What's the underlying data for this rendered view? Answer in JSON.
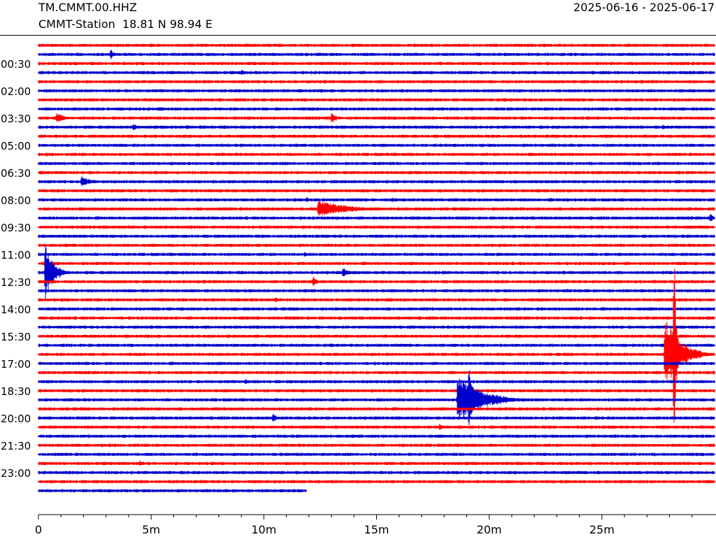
{
  "header": {
    "station_id": "TM.CMMT.00.HHZ",
    "station_desc": "CMMT-Station  18.81 N 98.94 E",
    "date_range": "2025-06-16 - 2025-06-17"
  },
  "chart_data": {
    "type": "line",
    "description": "Helicorder 24h seismogram, one trace per 30-minute row",
    "row_count": 50,
    "last_row_end_minute": 11.9,
    "colors": [
      "#ff0000",
      "#0000cc"
    ],
    "x_axis": {
      "range": [
        0,
        30
      ],
      "major_ticks": [
        0,
        5,
        10,
        15,
        20,
        25
      ],
      "tick_labels": [
        "0",
        "5m",
        "10m",
        "15m",
        "20m",
        "25m"
      ],
      "minor_tick_step": 1
    },
    "y_labels": [
      {
        "row": 3,
        "text": "00:30"
      },
      {
        "row": 6,
        "text": "02:00"
      },
      {
        "row": 9,
        "text": "03:30"
      },
      {
        "row": 12,
        "text": "05:00"
      },
      {
        "row": 15,
        "text": "06:30"
      },
      {
        "row": 18,
        "text": "08:00"
      },
      {
        "row": 21,
        "text": "09:30"
      },
      {
        "row": 24,
        "text": "11:00"
      },
      {
        "row": 27,
        "text": "12:30"
      },
      {
        "row": 30,
        "text": "14:00"
      },
      {
        "row": 33,
        "text": "15:30"
      },
      {
        "row": 36,
        "text": "17:00"
      },
      {
        "row": 39,
        "text": "18:30"
      },
      {
        "row": 42,
        "text": "20:00"
      },
      {
        "row": 45,
        "text": "21:30"
      },
      {
        "row": 48,
        "text": "23:00"
      }
    ],
    "events": [
      {
        "row": 1,
        "minute": 3.2,
        "amp": 8,
        "dur": 0.6
      },
      {
        "row": 3,
        "minute": 9.0,
        "amp": 5,
        "dur": 0.6
      },
      {
        "row": 8,
        "minute": 0.8,
        "amp": 8,
        "dur": 1.2
      },
      {
        "row": 8,
        "minute": 13.0,
        "amp": 8,
        "dur": 1.0
      },
      {
        "row": 9,
        "minute": 4.2,
        "amp": 6,
        "dur": 0.8
      },
      {
        "row": 9,
        "minute": 6.6,
        "amp": 4,
        "dur": 0.5
      },
      {
        "row": 9,
        "minute": 27.7,
        "amp": 4,
        "dur": 0.6
      },
      {
        "row": 11,
        "minute": 17.5,
        "amp": 3,
        "dur": 0.5
      },
      {
        "row": 14,
        "minute": 19.7,
        "amp": 3,
        "dur": 0.4
      },
      {
        "row": 14,
        "minute": 28.0,
        "amp": 3,
        "dur": 0.4
      },
      {
        "row": 15,
        "minute": 1.9,
        "amp": 9,
        "dur": 1.4
      },
      {
        "row": 17,
        "minute": 11.9,
        "amp": 5,
        "dur": 0.6
      },
      {
        "row": 17,
        "minute": 15.7,
        "amp": 4,
        "dur": 0.6
      },
      {
        "row": 17,
        "minute": 22.7,
        "amp": 4,
        "dur": 0.5
      },
      {
        "row": 18,
        "minute": 12.4,
        "amp": 14,
        "dur": 4.0
      },
      {
        "row": 19,
        "minute": 29.8,
        "amp": 8,
        "dur": 0.4
      },
      {
        "row": 23,
        "minute": 11.8,
        "amp": 4,
        "dur": 0.4
      },
      {
        "row": 25,
        "minute": 0.3,
        "amp": 40,
        "dur": 1.2
      },
      {
        "row": 25,
        "minute": 13.5,
        "amp": 8,
        "dur": 0.9
      },
      {
        "row": 26,
        "minute": 12.2,
        "amp": 10,
        "dur": 0.4
      },
      {
        "row": 28,
        "minute": 10.5,
        "amp": 5,
        "dur": 0.4
      },
      {
        "row": 34,
        "minute": 27.8,
        "amp": 55,
        "dur": 2.2
      },
      {
        "row": 34,
        "minute": 28.2,
        "amp": 175,
        "dur": 0.3
      },
      {
        "row": 37,
        "minute": 9.2,
        "amp": 5,
        "dur": 0.4
      },
      {
        "row": 39,
        "minute": 18.6,
        "amp": 35,
        "dur": 3.5
      },
      {
        "row": 39,
        "minute": 19.1,
        "amp": 75,
        "dur": 0.5
      },
      {
        "row": 41,
        "minute": 10.4,
        "amp": 8,
        "dur": 0.6
      },
      {
        "row": 42,
        "minute": 17.8,
        "amp": 6,
        "dur": 0.5
      },
      {
        "row": 46,
        "minute": 4.5,
        "amp": 6,
        "dur": 0.5
      }
    ]
  }
}
